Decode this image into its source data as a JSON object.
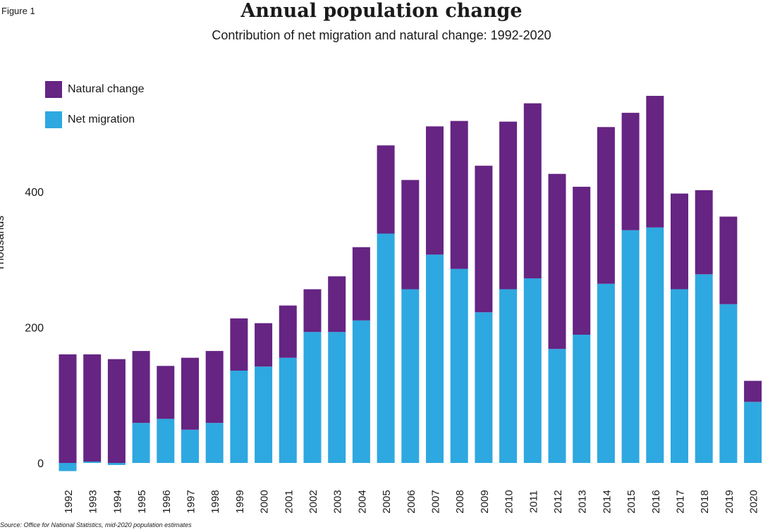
{
  "figure_label": "Figure 1",
  "chart_data": {
    "type": "bar",
    "stacked": true,
    "title": "Annual population change",
    "subtitle": "Contribution of net migration and natural change: 1992-2020",
    "xlabel": "",
    "ylabel": "Thousands",
    "ylim": [
      -15,
      560
    ],
    "yticks": [
      0,
      200,
      400
    ],
    "categories": [
      "1992",
      "1993",
      "1994",
      "1995",
      "1996",
      "1997",
      "1998",
      "1999",
      "2000",
      "2001",
      "2002",
      "2003",
      "2004",
      "2005",
      "2006",
      "2007",
      "2008",
      "2009",
      "2010",
      "2011",
      "2012",
      "2013",
      "2014",
      "2015",
      "2016",
      "2017",
      "2018",
      "2019",
      "2020"
    ],
    "series": [
      {
        "name": "Net migration",
        "color": "#2ea8e0",
        "values": [
          -12,
          2,
          -3,
          59,
          65,
          49,
          59,
          136,
          142,
          155,
          193,
          193,
          210,
          338,
          256,
          307,
          286,
          222,
          256,
          272,
          168,
          189,
          264,
          343,
          347,
          256,
          278,
          234,
          90
        ]
      },
      {
        "name": "Natural change",
        "color": "#662483",
        "values": [
          160,
          158,
          153,
          106,
          78,
          106,
          106,
          77,
          64,
          77,
          63,
          82,
          108,
          130,
          161,
          189,
          218,
          216,
          247,
          258,
          258,
          218,
          231,
          173,
          194,
          141,
          124,
          129,
          31
        ]
      }
    ],
    "legend_position": "top-left",
    "grid": false,
    "source": "Source: Office for National Statistics, mid-2020 population estimates"
  }
}
